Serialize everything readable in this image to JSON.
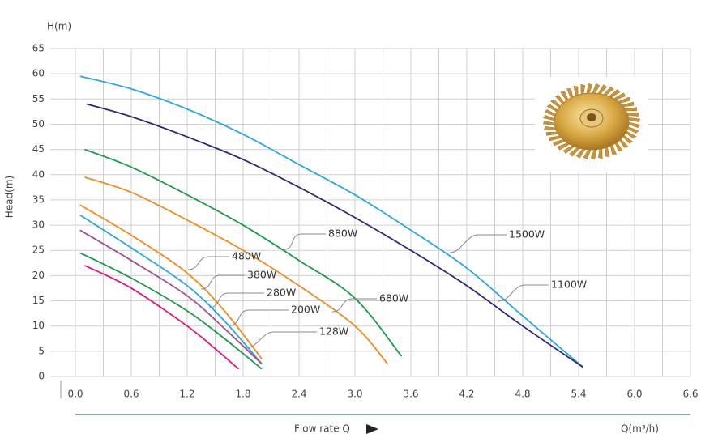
{
  "chart_data": {
    "type": "line",
    "y_label_top": "H(m)",
    "y_label": "Head(m)",
    "x_label": "Flow rate Q",
    "x_unit": "Q(m³/h)",
    "xlim": [
      0,
      6.6
    ],
    "ylim": [
      0,
      65
    ],
    "xticks": [
      {
        "value": 0,
        "label": "0.0"
      },
      0.6,
      1.2,
      1.8,
      2.4,
      {
        "value": 3,
        "label": "3.0"
      },
      3.6,
      4.2,
      4.8,
      5.4,
      {
        "value": 6,
        "label": "6.0"
      },
      6.6
    ],
    "yticks": [
      0,
      5,
      10,
      15,
      20,
      25,
      30,
      35,
      40,
      45,
      50,
      55,
      60,
      65
    ],
    "grid": true,
    "series": [
      {
        "name": "1500W",
        "color": "#29a8e0",
        "x": [
          0.05,
          0.6,
          1.2,
          1.8,
          2.4,
          3.0,
          3.6,
          4.2,
          4.8,
          5.45
        ],
        "values": [
          59.5,
          57,
          53,
          48,
          42,
          36,
          29,
          21.5,
          12,
          1.8
        ]
      },
      {
        "name": "1100W",
        "color": "#2b2a7a",
        "x": [
          0.12,
          0.6,
          1.2,
          1.8,
          2.4,
          3.0,
          3.6,
          4.2,
          4.8,
          5.45
        ],
        "values": [
          54,
          51.5,
          47.5,
          43,
          37.5,
          31.5,
          25,
          18,
          10,
          1.8
        ]
      },
      {
        "name": "880W",
        "color": "#1e9a4a",
        "x": [
          0.1,
          0.6,
          1.2,
          1.8,
          2.4,
          3.0,
          3.5
        ],
        "values": [
          45,
          41.5,
          36,
          30,
          23,
          15.5,
          4
        ]
      },
      {
        "name": "680W",
        "color": "#f08c1e",
        "x": [
          0.1,
          0.6,
          1.2,
          1.8,
          2.4,
          3.0,
          3.35
        ],
        "values": [
          39.5,
          36.5,
          31,
          25,
          18,
          10,
          2.5
        ]
      },
      {
        "name": "480W",
        "color": "#f08c1e",
        "x": [
          0.05,
          0.6,
          1.2,
          1.6,
          2.0
        ],
        "values": [
          34,
          28,
          20.5,
          13,
          3.5
        ]
      },
      {
        "name": "380W",
        "color": "#29a8e0",
        "x": [
          0.05,
          0.6,
          1.2,
          1.6,
          2.0
        ],
        "values": [
          32,
          25.5,
          18,
          11,
          2.5
        ]
      },
      {
        "name": "280W",
        "color": "#a05095",
        "x": [
          0.05,
          0.6,
          1.2,
          1.6,
          2.0
        ],
        "values": [
          29,
          23,
          16,
          9.5,
          2.5
        ]
      },
      {
        "name": "200W",
        "color": "#1e9a4a",
        "x": [
          0.05,
          0.6,
          1.2,
          1.6,
          2.0
        ],
        "values": [
          24.5,
          19.5,
          13,
          7.5,
          1.5
        ]
      },
      {
        "name": "128W",
        "color": "#e0187e",
        "x": [
          0.1,
          0.6,
          1.2,
          1.5,
          1.75
        ],
        "values": [
          22,
          17.5,
          10,
          5.5,
          1.5
        ]
      }
    ]
  }
}
